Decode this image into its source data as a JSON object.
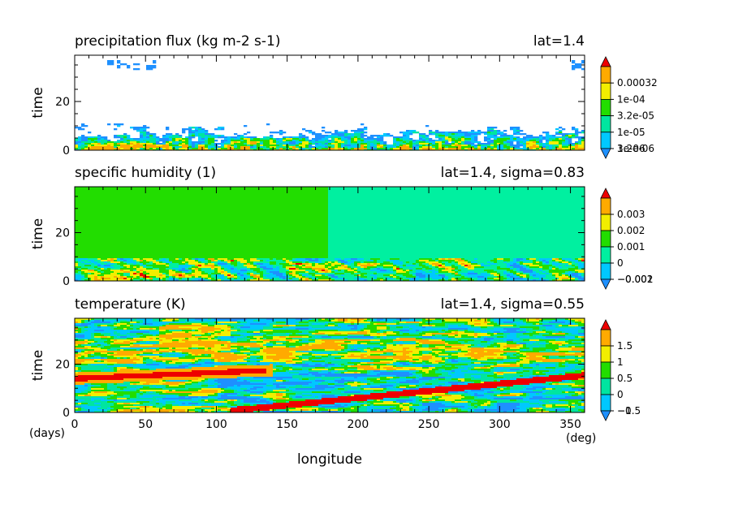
{
  "chart_data": [
    {
      "type": "heatmap",
      "title": "precipitation flux (kg m-2 s-1)",
      "subtitle": "lat=1.4",
      "ylabel": "time",
      "ylim": [
        0,
        39
      ],
      "xlim": [
        0,
        360
      ],
      "yticks": [
        "0",
        "20"
      ],
      "colorbar": {
        "labels": [
          "0.00032",
          "1e-04",
          "3.2e-05",
          "1e-05",
          "3.2e-06",
          "1e-06"
        ],
        "colors": [
          "#1e90ff",
          "#00c8ff",
          "#00e5a0",
          "#22dd00",
          "#f2ee00",
          "#ffaa00",
          "#ee0000"
        ]
      }
    },
    {
      "type": "heatmap",
      "title": "specific humidity (1)",
      "subtitle": "lat=1.4, sigma=0.83",
      "ylabel": "time",
      "ylim": [
        0,
        39
      ],
      "xlim": [
        0,
        360
      ],
      "yticks": [
        "0",
        "20"
      ],
      "colorbar": {
        "labels": [
          "0.003",
          "0.002",
          "0.001",
          "0",
          "−0.001",
          "−0.002"
        ],
        "colors": [
          "#1e90ff",
          "#00c8ff",
          "#00f0a0",
          "#22dd00",
          "#f2ee00",
          "#ffaa00",
          "#ee0000"
        ]
      }
    },
    {
      "type": "heatmap",
      "title": "temperature (K)",
      "subtitle": "lat=1.4, sigma=0.55",
      "ylabel": "time",
      "ylim": [
        0,
        39
      ],
      "xlim": [
        0,
        360
      ],
      "yticks": [
        "0",
        "20"
      ],
      "colorbar": {
        "labels": [
          "1.5",
          "1",
          "0.5",
          "0",
          "−0.5",
          "−1"
        ],
        "colors": [
          "#1e90ff",
          "#00c8ff",
          "#00e5a0",
          "#22dd00",
          "#f2ee00",
          "#ffaa00",
          "#ee0000"
        ]
      }
    }
  ],
  "xaxis": {
    "label": "longitude",
    "ticks": [
      "0",
      "50",
      "100",
      "150",
      "200",
      "250",
      "300",
      "350"
    ],
    "unit": "(deg)",
    "yunit": "(days)"
  }
}
